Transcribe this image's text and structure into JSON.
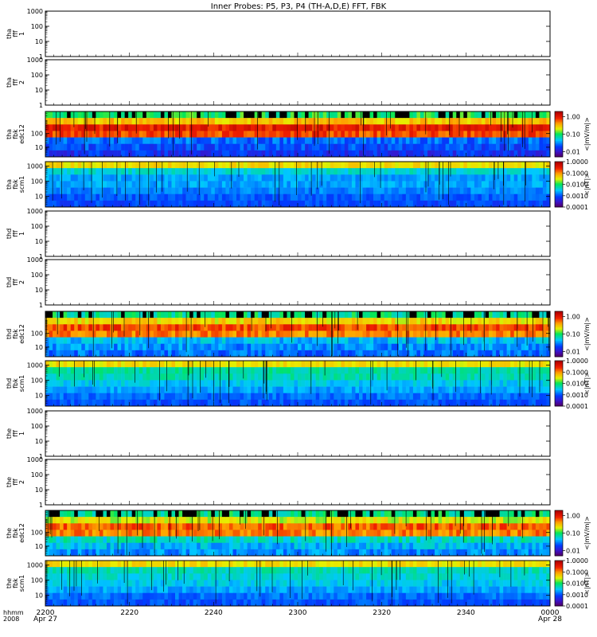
{
  "title": "Inner Probes: P5, P3, P4 (TH-A,D,E) FFT, FBK",
  "chart_data": [
    {
      "type": "heatmap",
      "ylabel": [
        "tha",
        "fff",
        "1"
      ],
      "yscale": "log",
      "ylim": [
        1,
        1000
      ],
      "yticks": [
        "1000",
        "100",
        "10",
        "1"
      ],
      "mode": "empty"
    },
    {
      "type": "heatmap",
      "ylabel": [
        "tha",
        "fff",
        "2"
      ],
      "yscale": "log",
      "ylim": [
        1,
        1000
      ],
      "yticks": [
        "1000",
        "100",
        "10",
        "1"
      ],
      "mode": "empty"
    },
    {
      "type": "heatmap",
      "ylabel": [
        "tha",
        "fbk",
        "edc12"
      ],
      "yscale": "log",
      "ylim": [
        2,
        4000
      ],
      "yticks": [
        "100",
        "10"
      ],
      "mode": "edc",
      "colorbar": {
        "label": "<|mV/m|>",
        "ticks": [
          "1.00",
          "0.10",
          "0.01"
        ],
        "range": [
          0.005,
          2.0
        ]
      },
      "band_levels": [
        0.1,
        0.3,
        1.0,
        0.7,
        0.025,
        0.02,
        0.015
      ]
    },
    {
      "type": "heatmap",
      "ylabel": [
        "tha",
        "fbk",
        "scm1"
      ],
      "yscale": "log",
      "ylim": [
        2,
        2000
      ],
      "yticks": [
        "1000",
        "100",
        "10"
      ],
      "mode": "scm",
      "colorbar": {
        "label": "<|nT|>",
        "ticks": [
          "1.0000",
          "0.1000",
          "0.0100",
          "0.0010",
          "0.0001"
        ],
        "range": [
          0.0001,
          1.0
        ]
      },
      "band_levels": [
        0.04,
        0.004,
        0.002,
        0.002,
        0.0015,
        0.001,
        0.0008
      ]
    },
    {
      "type": "heatmap",
      "ylabel": [
        "thd",
        "fff",
        "1"
      ],
      "yscale": "log",
      "ylim": [
        1,
        1000
      ],
      "yticks": [
        "1000",
        "100",
        "10",
        "1"
      ],
      "mode": "empty"
    },
    {
      "type": "heatmap",
      "ylabel": [
        "thd",
        "fff",
        "2"
      ],
      "yscale": "log",
      "ylim": [
        1,
        1000
      ],
      "yticks": [
        "1000",
        "100",
        "10",
        "1"
      ],
      "mode": "empty"
    },
    {
      "type": "heatmap",
      "ylabel": [
        "thd",
        "fbk",
        "edc12"
      ],
      "yscale": "log",
      "ylim": [
        2,
        4000
      ],
      "yticks": [
        "100",
        "10"
      ],
      "mode": "edc",
      "colorbar": {
        "label": "<|mV/m|>",
        "ticks": [
          "1.00",
          "0.10",
          "0.01"
        ],
        "range": [
          0.005,
          2.0
        ]
      },
      "band_levels": [
        0.08,
        0.25,
        0.7,
        0.5,
        0.04,
        0.03,
        0.025
      ]
    },
    {
      "type": "heatmap",
      "ylabel": [
        "thd",
        "fbk",
        "scm1"
      ],
      "yscale": "log",
      "ylim": [
        2,
        2000
      ],
      "yticks": [
        "1000",
        "100",
        "10"
      ],
      "mode": "scm",
      "colorbar": {
        "label": "<|nT|>",
        "ticks": [
          "1.0000",
          "0.1000",
          "0.0100",
          "0.0010",
          "0.0001"
        ],
        "range": [
          0.0001,
          1.0
        ]
      },
      "band_levels": [
        0.04,
        0.006,
        0.005,
        0.003,
        0.002,
        0.0012,
        0.0009
      ]
    },
    {
      "type": "heatmap",
      "ylabel": [
        "the",
        "fff",
        "1"
      ],
      "yscale": "log",
      "ylim": [
        1,
        1000
      ],
      "yticks": [
        "1000",
        "100",
        "10",
        "1"
      ],
      "mode": "empty"
    },
    {
      "type": "heatmap",
      "ylabel": [
        "the",
        "fff",
        "2"
      ],
      "yscale": "log",
      "ylim": [
        1,
        1000
      ],
      "yticks": [
        "1000",
        "100",
        "10",
        "1"
      ],
      "mode": "empty"
    },
    {
      "type": "heatmap",
      "ylabel": [
        "the",
        "fbk",
        "edc12"
      ],
      "yscale": "log",
      "ylim": [
        2,
        4000
      ],
      "yticks": [
        "100",
        "10"
      ],
      "mode": "edc",
      "colorbar": {
        "label": "<|mV/m|>",
        "ticks": [
          "1.00",
          "0.10",
          "0.01"
        ],
        "range": [
          0.005,
          2.0
        ]
      },
      "band_levels": [
        0.08,
        0.2,
        0.6,
        0.5,
        0.06,
        0.04,
        0.03
      ]
    },
    {
      "type": "heatmap",
      "ylabel": [
        "the",
        "fbk",
        "scm1"
      ],
      "yscale": "log",
      "ylim": [
        2,
        2000
      ],
      "yticks": [
        "1000",
        "100",
        "10"
      ],
      "mode": "scm",
      "colorbar": {
        "label": "<|nT|>",
        "ticks": [
          "1.0000",
          "0.1000",
          "0.0100",
          "0.0010",
          "0.0001"
        ],
        "range": [
          0.0001,
          1.0
        ]
      },
      "band_levels": [
        0.04,
        0.005,
        0.004,
        0.003,
        0.002,
        0.0012,
        0.0009
      ]
    }
  ],
  "x_axis": {
    "ticks": [
      "2200",
      "2220",
      "2240",
      "2300",
      "2320",
      "2340",
      "0000"
    ],
    "left_label": [
      "hhmm",
      "2008"
    ],
    "date_labels": [
      {
        "tick": "2200",
        "text": "Apr 27"
      },
      {
        "tick": "0000",
        "text": "Apr 28"
      }
    ]
  }
}
